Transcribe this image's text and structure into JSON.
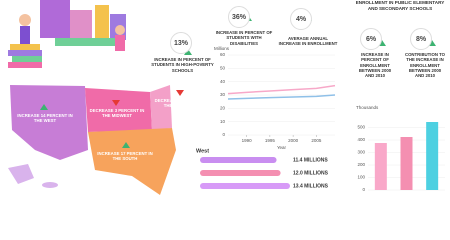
{
  "stats": [
    {
      "value": "13%",
      "text": "INCREASE IN PERCENT OF STUDENTS IN HIGH-POVERTY SCHOOLS"
    },
    {
      "value": "36%",
      "text": "INCREASE IN PERCENT OF STUDENTS WITH DISABILITIES"
    },
    {
      "value": "4%",
      "text": "AVERAGE ANNUAL INCREASE IN ENROLLMENT"
    }
  ],
  "enrollment": {
    "title": "ENROLLMENT IN PUBLIC ELEMENTARY AND SECONDARY SCHOOLS",
    "stats": [
      {
        "value": "6%",
        "text": "INCREASE IN PERCENT OF ENROLLMENT BETWEEN 2000 AND 2010"
      },
      {
        "value": "8%",
        "text": "CONTRIBUTION TO THE INCREASE IN ENROLLMENT BETWEEN 2000 AND 2010"
      }
    ]
  },
  "map": {
    "regions": [
      {
        "label": "INCREASE 14 PERCENT IN THE WEST"
      },
      {
        "label": "DECREASE 3 PERCENT IN THE MIDWEST"
      },
      {
        "label": "DECREASE 8 PERCENT IN THE NORTHEAST"
      },
      {
        "label": "INCREASE 17 PERCENT IN THE SOUTH"
      }
    ]
  },
  "chart_data": [
    {
      "type": "line",
      "ylabel": "Millions",
      "xlabel": "Year",
      "x": [
        1986,
        1990,
        1995,
        2000,
        2005,
        2009
      ],
      "series": [
        {
          "color": "#f7a8c8",
          "values": [
            31,
            32,
            33,
            34,
            35,
            37
          ]
        },
        {
          "color": "#8fc0e8",
          "values": [
            27,
            27.5,
            28,
            28.5,
            29,
            30
          ]
        }
      ],
      "xlim": [
        1986,
        2009
      ],
      "xticks": [
        1990,
        1995,
        2000,
        2005
      ],
      "ylim": [
        0,
        60
      ],
      "yticks": [
        0,
        10,
        20,
        30,
        40,
        50,
        60
      ],
      "grid": true
    },
    {
      "type": "hbar",
      "title": "West",
      "values": [
        11.4,
        12.0,
        13.4
      ],
      "value_labels": [
        "11.4 MILLIONS",
        "12.0 MILLIONS",
        "13.4 MILLIONS"
      ],
      "colors": [
        "#c98ef0",
        "#f48fb1",
        "#d79af7"
      ]
    },
    {
      "type": "bar",
      "ylabel": "Thousands",
      "categories": [
        null,
        null,
        null
      ],
      "values": [
        376,
        424,
        544
      ],
      "colors": [
        "#f9a8c9",
        "#f48fb1",
        "#4dd0e1"
      ],
      "ylim": [
        0,
        600
      ],
      "yticks": [
        0,
        100,
        200,
        300,
        400,
        500
      ],
      "grid": true
    }
  ]
}
